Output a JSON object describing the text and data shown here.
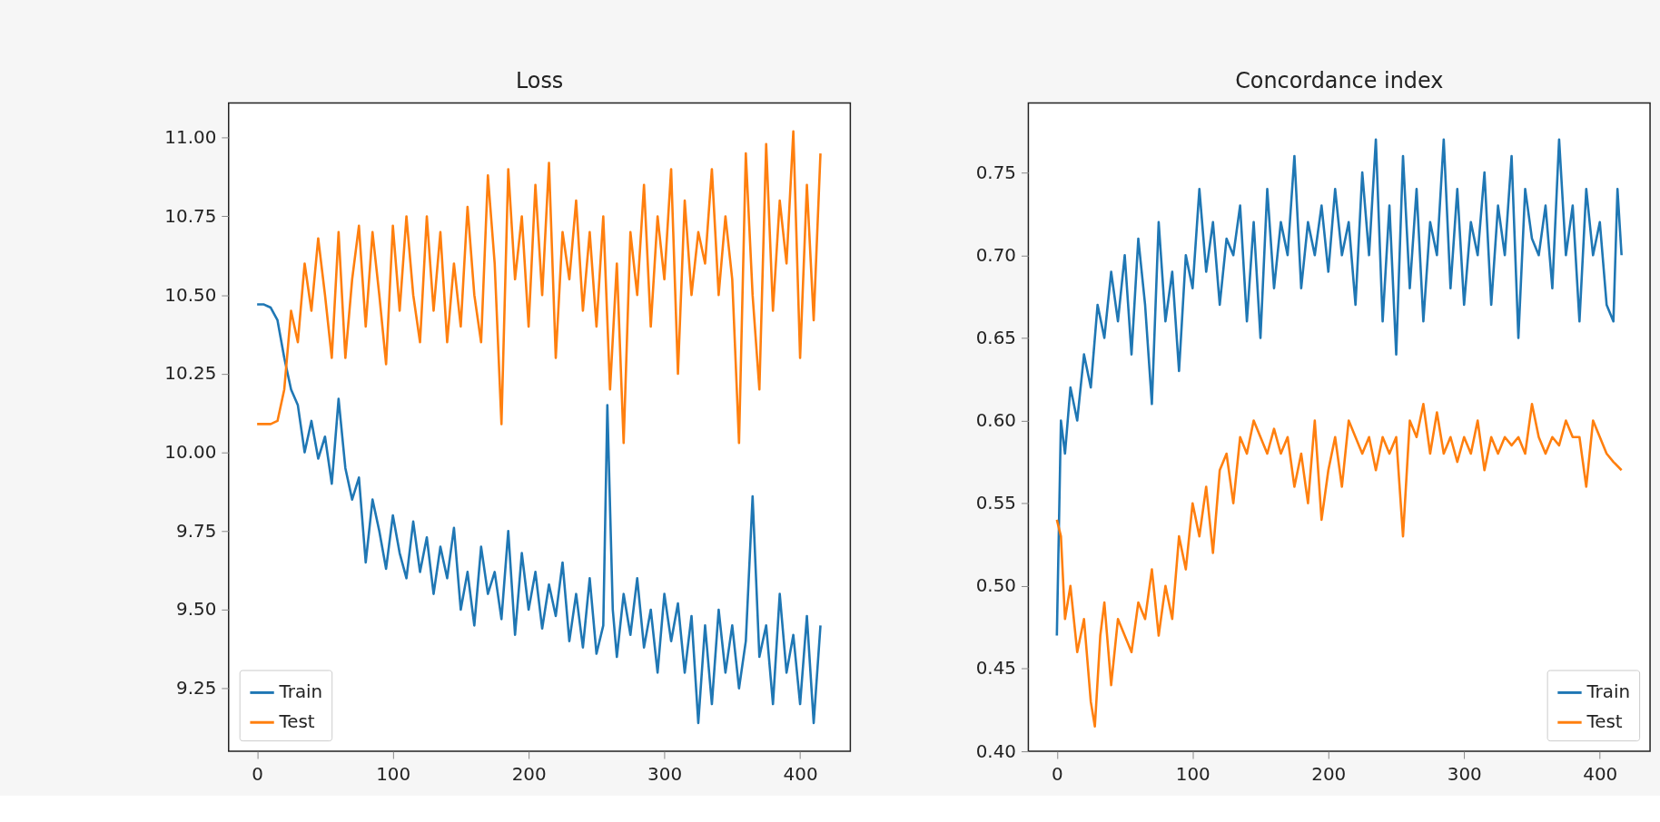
{
  "chart_data": [
    {
      "type": "line",
      "title": "Loss",
      "xlim": [
        -21,
        437
      ],
      "ylim": [
        9.05,
        11.11
      ],
      "xticks": [
        0,
        100,
        200,
        300,
        400
      ],
      "yticks": [
        {
          "value": 9.25,
          "label": "9.25"
        },
        {
          "value": 9.5,
          "label": "9.50"
        },
        {
          "value": 9.75,
          "label": "9.75"
        },
        {
          "value": 10,
          "label": "10.00"
        },
        {
          "value": 10.25,
          "label": "10.25"
        },
        {
          "value": 10.5,
          "label": "10.50"
        },
        {
          "value": 10.75,
          "label": "10.75"
        },
        {
          "value": 11,
          "label": "11.00"
        }
      ],
      "legend": "bottom left",
      "line_style": "solid",
      "marker": "none",
      "series": [
        {
          "name": "Train",
          "color": "#1f77b4",
          "x": [
            0,
            5,
            10,
            15,
            20,
            25,
            30,
            35,
            40,
            45,
            50,
            55,
            60,
            65,
            70,
            75,
            80,
            85,
            90,
            95,
            100,
            105,
            110,
            115,
            120,
            125,
            130,
            135,
            140,
            145,
            150,
            155,
            160,
            165,
            170,
            175,
            180,
            185,
            190,
            195,
            200,
            205,
            210,
            215,
            220,
            225,
            230,
            235,
            240,
            245,
            250,
            255,
            258,
            262,
            265,
            270,
            275,
            280,
            285,
            290,
            295,
            300,
            305,
            310,
            315,
            320,
            325,
            330,
            335,
            340,
            345,
            350,
            355,
            360,
            365,
            370,
            375,
            380,
            385,
            390,
            395,
            400,
            405,
            410,
            415
          ],
          "values": [
            10.47,
            10.47,
            10.46,
            10.42,
            10.3,
            10.2,
            10.15,
            10.0,
            10.1,
            9.98,
            10.05,
            9.9,
            10.17,
            9.95,
            9.85,
            9.92,
            9.65,
            9.85,
            9.75,
            9.63,
            9.8,
            9.68,
            9.6,
            9.78,
            9.62,
            9.73,
            9.55,
            9.7,
            9.6,
            9.76,
            9.5,
            9.62,
            9.45,
            9.7,
            9.55,
            9.62,
            9.47,
            9.75,
            9.42,
            9.68,
            9.5,
            9.62,
            9.44,
            9.58,
            9.48,
            9.65,
            9.4,
            9.55,
            9.38,
            9.6,
            9.36,
            9.45,
            10.15,
            9.5,
            9.35,
            9.55,
            9.42,
            9.6,
            9.38,
            9.5,
            9.3,
            9.55,
            9.4,
            9.52,
            9.3,
            9.48,
            9.14,
            9.45,
            9.2,
            9.5,
            9.3,
            9.45,
            9.25,
            9.4,
            9.86,
            9.35,
            9.45,
            9.2,
            9.55,
            9.3,
            9.42,
            9.2,
            9.48,
            9.14,
            9.45
          ]
        },
        {
          "name": "Test",
          "color": "#ff7f0e",
          "x": [
            0,
            5,
            10,
            15,
            20,
            25,
            30,
            35,
            40,
            45,
            50,
            55,
            60,
            65,
            70,
            75,
            80,
            85,
            90,
            95,
            100,
            105,
            110,
            115,
            120,
            125,
            130,
            135,
            140,
            145,
            150,
            155,
            160,
            165,
            170,
            175,
            180,
            185,
            190,
            195,
            200,
            205,
            210,
            215,
            220,
            225,
            230,
            235,
            240,
            245,
            250,
            255,
            260,
            265,
            270,
            275,
            280,
            285,
            290,
            295,
            300,
            305,
            310,
            315,
            320,
            325,
            330,
            335,
            340,
            345,
            350,
            355,
            360,
            365,
            370,
            375,
            380,
            385,
            390,
            395,
            400,
            405,
            410,
            415
          ],
          "values": [
            10.09,
            10.09,
            10.09,
            10.1,
            10.2,
            10.45,
            10.35,
            10.6,
            10.45,
            10.68,
            10.5,
            10.3,
            10.7,
            10.3,
            10.55,
            10.72,
            10.4,
            10.7,
            10.5,
            10.28,
            10.72,
            10.45,
            10.75,
            10.5,
            10.35,
            10.75,
            10.45,
            10.7,
            10.35,
            10.6,
            10.4,
            10.78,
            10.5,
            10.35,
            10.88,
            10.6,
            10.09,
            10.9,
            10.55,
            10.75,
            10.4,
            10.85,
            10.5,
            10.92,
            10.3,
            10.7,
            10.55,
            10.8,
            10.45,
            10.7,
            10.4,
            10.75,
            10.2,
            10.6,
            10.03,
            10.7,
            10.5,
            10.85,
            10.4,
            10.75,
            10.55,
            10.9,
            10.25,
            10.8,
            10.5,
            10.7,
            10.6,
            10.9,
            10.5,
            10.75,
            10.55,
            10.03,
            10.95,
            10.5,
            10.2,
            10.98,
            10.45,
            10.8,
            10.6,
            11.02,
            10.3,
            10.85,
            10.42,
            10.95
          ]
        }
      ]
    },
    {
      "type": "line",
      "title": "Concordance index",
      "xlim": [
        -21,
        437
      ],
      "ylim": [
        0.4,
        0.792
      ],
      "xticks": [
        0,
        100,
        200,
        300,
        400
      ],
      "yticks": [
        {
          "value": 0.4,
          "label": "0.40"
        },
        {
          "value": 0.45,
          "label": "0.45"
        },
        {
          "value": 0.5,
          "label": "0.50"
        },
        {
          "value": 0.55,
          "label": "0.55"
        },
        {
          "value": 0.6,
          "label": "0.60"
        },
        {
          "value": 0.65,
          "label": "0.65"
        },
        {
          "value": 0.7,
          "label": "0.70"
        },
        {
          "value": 0.75,
          "label": "0.75"
        }
      ],
      "legend": "bottom right",
      "line_style": "solid",
      "marker": "none",
      "series": [
        {
          "name": "Train",
          "color": "#1f77b4",
          "x": [
            0,
            3,
            6,
            10,
            15,
            20,
            25,
            30,
            35,
            40,
            45,
            50,
            55,
            60,
            65,
            70,
            75,
            80,
            85,
            90,
            95,
            100,
            105,
            110,
            115,
            120,
            125,
            130,
            135,
            140,
            145,
            150,
            155,
            160,
            165,
            170,
            175,
            180,
            185,
            190,
            195,
            200,
            205,
            210,
            215,
            220,
            225,
            230,
            235,
            240,
            245,
            250,
            255,
            260,
            265,
            270,
            275,
            280,
            285,
            290,
            295,
            300,
            305,
            310,
            315,
            320,
            325,
            330,
            335,
            340,
            345,
            350,
            355,
            360,
            365,
            370,
            375,
            380,
            385,
            390,
            395,
            400,
            405,
            410,
            413,
            416
          ],
          "values": [
            0.47,
            0.6,
            0.58,
            0.62,
            0.6,
            0.64,
            0.62,
            0.67,
            0.65,
            0.69,
            0.66,
            0.7,
            0.64,
            0.71,
            0.67,
            0.61,
            0.72,
            0.66,
            0.69,
            0.63,
            0.7,
            0.68,
            0.74,
            0.69,
            0.72,
            0.67,
            0.71,
            0.7,
            0.73,
            0.66,
            0.72,
            0.65,
            0.74,
            0.68,
            0.72,
            0.7,
            0.76,
            0.68,
            0.72,
            0.7,
            0.73,
            0.69,
            0.74,
            0.7,
            0.72,
            0.67,
            0.75,
            0.7,
            0.77,
            0.66,
            0.73,
            0.64,
            0.76,
            0.68,
            0.74,
            0.66,
            0.72,
            0.7,
            0.77,
            0.68,
            0.74,
            0.67,
            0.72,
            0.7,
            0.75,
            0.67,
            0.73,
            0.7,
            0.76,
            0.65,
            0.74,
            0.71,
            0.7,
            0.73,
            0.68,
            0.77,
            0.7,
            0.73,
            0.66,
            0.74,
            0.7,
            0.72,
            0.67,
            0.66,
            0.74,
            0.7
          ]
        },
        {
          "name": "Test",
          "color": "#ff7f0e",
          "x": [
            0,
            3,
            6,
            10,
            15,
            20,
            25,
            28,
            32,
            35,
            40,
            45,
            50,
            55,
            60,
            65,
            70,
            75,
            80,
            85,
            90,
            95,
            100,
            105,
            110,
            115,
            120,
            125,
            130,
            135,
            140,
            145,
            150,
            155,
            160,
            165,
            170,
            175,
            180,
            185,
            190,
            195,
            200,
            205,
            210,
            215,
            220,
            225,
            230,
            235,
            240,
            245,
            250,
            255,
            260,
            265,
            270,
            275,
            280,
            285,
            290,
            295,
            300,
            305,
            310,
            315,
            320,
            325,
            330,
            335,
            340,
            345,
            350,
            355,
            360,
            365,
            370,
            375,
            380,
            385,
            390,
            395,
            400,
            405,
            410,
            416
          ],
          "values": [
            0.54,
            0.53,
            0.48,
            0.5,
            0.46,
            0.48,
            0.43,
            0.415,
            0.47,
            0.49,
            0.44,
            0.48,
            0.47,
            0.46,
            0.49,
            0.48,
            0.51,
            0.47,
            0.5,
            0.48,
            0.53,
            0.51,
            0.55,
            0.53,
            0.56,
            0.52,
            0.57,
            0.58,
            0.55,
            0.59,
            0.58,
            0.6,
            0.59,
            0.58,
            0.595,
            0.58,
            0.59,
            0.56,
            0.58,
            0.55,
            0.6,
            0.54,
            0.57,
            0.59,
            0.56,
            0.6,
            0.59,
            0.58,
            0.59,
            0.57,
            0.59,
            0.58,
            0.59,
            0.53,
            0.6,
            0.59,
            0.61,
            0.58,
            0.605,
            0.58,
            0.59,
            0.575,
            0.59,
            0.58,
            0.6,
            0.57,
            0.59,
            0.58,
            0.59,
            0.585,
            0.59,
            0.58,
            0.61,
            0.59,
            0.58,
            0.59,
            0.585,
            0.6,
            0.59,
            0.59,
            0.56,
            0.6,
            0.59,
            0.58,
            0.575,
            0.57
          ]
        }
      ]
    }
  ]
}
